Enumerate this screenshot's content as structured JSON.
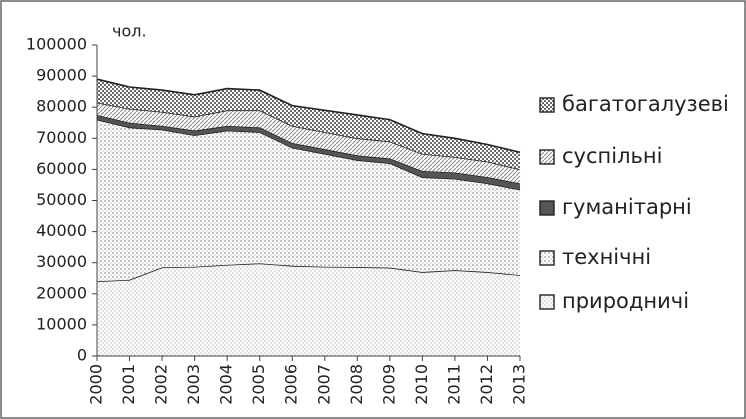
{
  "chart_data": {
    "type": "stacked_area",
    "y_axis_label": "чол.",
    "categories": [
      "2000",
      "2001",
      "2002",
      "2003",
      "2004",
      "2005",
      "2006",
      "2007",
      "2008",
      "2009",
      "2010",
      "2011",
      "2012",
      "2013"
    ],
    "series": [
      {
        "name": "природничі",
        "color": "#9a9a9a",
        "values": [
          24000,
          24500,
          28500,
          28700,
          29300,
          29800,
          29000,
          28700,
          28600,
          28400,
          27000,
          27600,
          27000,
          26000
        ]
      },
      {
        "name": "технічні",
        "color": "#7a7a7a",
        "values": [
          52000,
          49000,
          44300,
          42300,
          43200,
          42200,
          38000,
          36300,
          34400,
          33600,
          30500,
          29400,
          28500,
          27500
        ]
      },
      {
        "name": "гуманітарні",
        "color": "#555555",
        "values": [
          1500,
          1500,
          1200,
          1500,
          1500,
          1500,
          1500,
          1500,
          1500,
          1500,
          2000,
          2000,
          2000,
          2000
        ]
      },
      {
        "name": "суспільні",
        "color": "#8a8a8a",
        "values": [
          4000,
          4500,
          4500,
          4500,
          5000,
          5500,
          5500,
          5500,
          5500,
          5500,
          5500,
          5000,
          5000,
          4500
        ]
      },
      {
        "name": "багатогалузеві",
        "color": "#6a6a6a",
        "values": [
          7500,
          7000,
          7000,
          7000,
          7000,
          6500,
          6500,
          7000,
          7500,
          7000,
          6500,
          6000,
          5500,
          5500
        ]
      }
    ],
    "ylim": [
      0,
      100000
    ],
    "yticks": [
      0,
      10000,
      20000,
      30000,
      40000,
      50000,
      60000,
      70000,
      80000,
      90000,
      100000
    ],
    "legend": "right"
  }
}
